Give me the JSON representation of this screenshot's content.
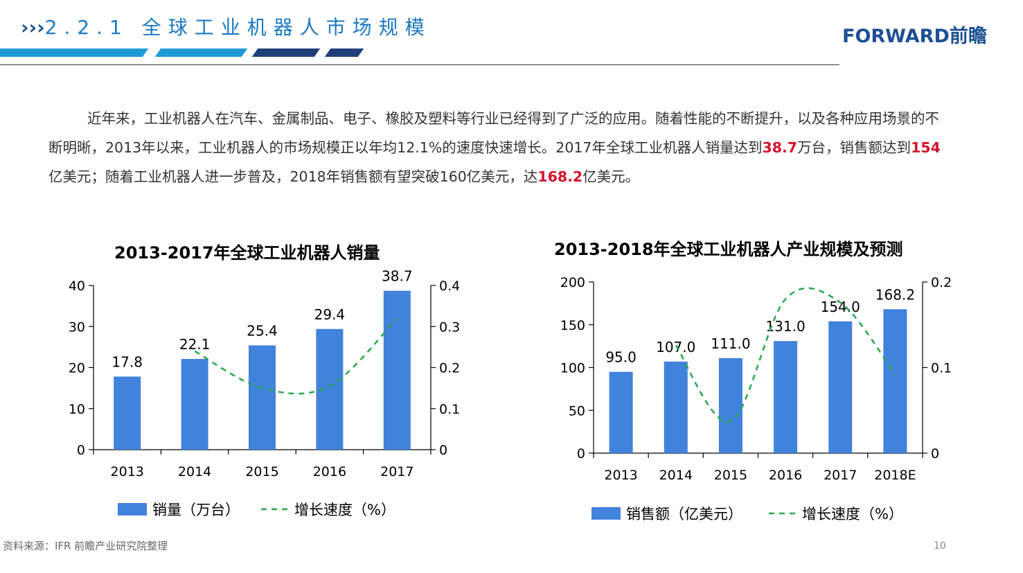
{
  "header": {
    "chevrons": "›››",
    "title": "2.2.1 全球工业机器人市场规模",
    "logo": "FORWARD前瞻"
  },
  "colors": {
    "accent": "#1a78c2",
    "stripe_light": "#1e9ad6",
    "stripe_dark": "#1f3f7a",
    "bar": "#4182dc",
    "line": "#22a84a",
    "highlight": "#d2142b"
  },
  "paragraph": {
    "p1": "近年来，工业机器人在汽车、金属制品、电子、橡胶及塑料等行业已经得到了广泛的应用。随着性能的不断提升，以及各种应用场景的不断明晰，2013年以来，工业机器人的市场规模正以年均12.1%的速度快速增长。2017年全球工业机器人销量达到",
    "h1": "38.7",
    "p2": "万台，销售额达到",
    "h2": "154",
    "p3": "亿美元；随着工业机器人进一步普及，2018年销售额有望突破160亿美元，达",
    "h3": "168.2",
    "p4": "亿美元。"
  },
  "chart_data": [
    {
      "type": "bar",
      "title": "2013-2017年全球工业机器人销量",
      "categories": [
        "2013",
        "2014",
        "2015",
        "2016",
        "2017"
      ],
      "series": [
        {
          "name": "销量（万台）",
          "type": "bar",
          "axis": "left",
          "values": [
            17.8,
            22.1,
            25.4,
            29.4,
            38.7
          ],
          "labels": [
            "17.8",
            "22.1",
            "25.4",
            "29.4",
            "38.7"
          ]
        },
        {
          "name": "增长速度（%）",
          "type": "line",
          "style": "dashed",
          "axis": "right",
          "values": [
            null,
            0.24,
            0.15,
            0.155,
            0.32
          ]
        }
      ],
      "ylim_left": [
        0,
        40
      ],
      "yticks_left": [
        "0",
        "10",
        "20",
        "30",
        "40"
      ],
      "ylim_right": [
        0,
        0.4
      ],
      "yticks_right": [
        "0",
        "0.1",
        "0.2",
        "0.3",
        "0.4"
      ],
      "legend": "bottom"
    },
    {
      "type": "bar",
      "title": "2013-2018年全球工业机器人产业规模及预测",
      "categories": [
        "2013",
        "2014",
        "2015",
        "2016",
        "2017",
        "2018E"
      ],
      "series": [
        {
          "name": "销售额（亿美元）",
          "type": "bar",
          "axis": "left",
          "values": [
            95.0,
            107.0,
            111.0,
            131.0,
            154.0,
            168.2
          ],
          "labels": [
            "95.0",
            "107.0",
            "111.0",
            "131.0",
            "154.0",
            "168.2"
          ]
        },
        {
          "name": "增长速度（%）",
          "type": "line",
          "style": "dashed",
          "axis": "right",
          "values": [
            null,
            0.126,
            0.037,
            0.18,
            0.176,
            0.092
          ]
        }
      ],
      "ylim_left": [
        0,
        200
      ],
      "yticks_left": [
        "0",
        "50",
        "100",
        "150",
        "200"
      ],
      "ylim_right": [
        0,
        0.2
      ],
      "yticks_right": [
        "0",
        "0.1",
        "0.2"
      ],
      "legend": "bottom"
    }
  ],
  "footer": {
    "source": "资料来源：IFR 前瞻产业研究院整理",
    "page": "10"
  }
}
